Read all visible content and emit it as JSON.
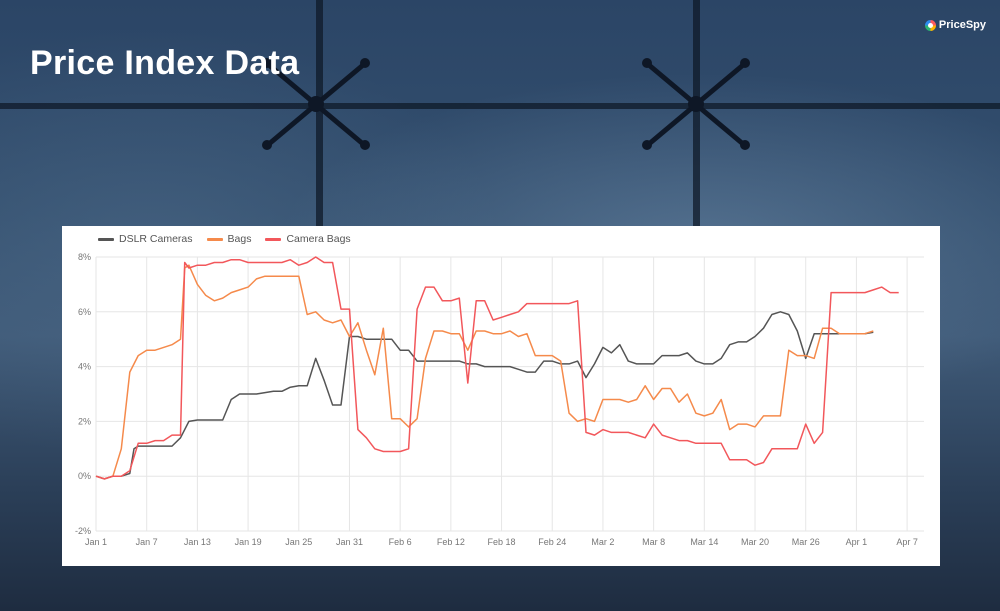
{
  "page": {
    "title": "Price Index Data",
    "brand": "PriceSpy"
  },
  "colors": {
    "dslr": "#555555",
    "bags": "#f58a4b",
    "camera_bags": "#f2575b",
    "grid": "#e6e6e6"
  },
  "chart_data": {
    "type": "line",
    "title": "",
    "xlabel": "",
    "ylabel": "",
    "ylim": [
      -2,
      8
    ],
    "yticks": [
      -2,
      0,
      2,
      4,
      6,
      8
    ],
    "ytick_labels": [
      "-2%",
      "0%",
      "2%",
      "4%",
      "6%",
      "8%"
    ],
    "x_start": "Jan 1",
    "x_range": [
      0,
      98
    ],
    "xticks": [
      0,
      6,
      12,
      18,
      24,
      30,
      36,
      42,
      48,
      54,
      60,
      66,
      72,
      78,
      84,
      90,
      96
    ],
    "xtick_labels": [
      "Jan 1",
      "Jan 7",
      "Jan 13",
      "Jan 19",
      "Jan 25",
      "Jan 31",
      "Feb 6",
      "Feb 12",
      "Feb 18",
      "Feb 24",
      "Mar 2",
      "Mar 8",
      "Mar 14",
      "Mar 20",
      "Mar 26",
      "Apr 1",
      "Apr 7"
    ],
    "legend_position": "top-left",
    "grid": true,
    "series": [
      {
        "name": "DSLR Cameras",
        "color_key": "dslr",
        "points": [
          [
            0,
            0
          ],
          [
            1,
            -0.1
          ],
          [
            2,
            0
          ],
          [
            3,
            0
          ],
          [
            4,
            0.1
          ],
          [
            4.5,
            1.0
          ],
          [
            5,
            1.1
          ],
          [
            6,
            1.1
          ],
          [
            7,
            1.1
          ],
          [
            8,
            1.1
          ],
          [
            9,
            1.1
          ],
          [
            10,
            1.4
          ],
          [
            11,
            2.0
          ],
          [
            12,
            2.05
          ],
          [
            13,
            2.05
          ],
          [
            14,
            2.05
          ],
          [
            15,
            2.05
          ],
          [
            16,
            2.8
          ],
          [
            17,
            3.0
          ],
          [
            18,
            3.0
          ],
          [
            19,
            3.0
          ],
          [
            20,
            3.05
          ],
          [
            21,
            3.1
          ],
          [
            22,
            3.1
          ],
          [
            23,
            3.25
          ],
          [
            24,
            3.3
          ],
          [
            25,
            3.3
          ],
          [
            26,
            4.3
          ],
          [
            27,
            3.5
          ],
          [
            28,
            2.6
          ],
          [
            29,
            2.6
          ],
          [
            30,
            5.1
          ],
          [
            31,
            5.1
          ],
          [
            32,
            5.0
          ],
          [
            33,
            5.0
          ],
          [
            34,
            5.0
          ],
          [
            35,
            5.0
          ],
          [
            36,
            4.6
          ],
          [
            37,
            4.6
          ],
          [
            38,
            4.2
          ],
          [
            39,
            4.2
          ],
          [
            40,
            4.2
          ],
          [
            41,
            4.2
          ],
          [
            42,
            4.2
          ],
          [
            43,
            4.2
          ],
          [
            44,
            4.1
          ],
          [
            45,
            4.1
          ],
          [
            46,
            4.0
          ],
          [
            47,
            4.0
          ],
          [
            48,
            4.0
          ],
          [
            49,
            4.0
          ],
          [
            50,
            3.9
          ],
          [
            51,
            3.8
          ],
          [
            52,
            3.8
          ],
          [
            53,
            4.2
          ],
          [
            54,
            4.2
          ],
          [
            55,
            4.1
          ],
          [
            56,
            4.1
          ],
          [
            57,
            4.2
          ],
          [
            58,
            3.6
          ],
          [
            59,
            4.1
          ],
          [
            60,
            4.7
          ],
          [
            61,
            4.5
          ],
          [
            62,
            4.8
          ],
          [
            63,
            4.2
          ],
          [
            64,
            4.1
          ],
          [
            65,
            4.1
          ],
          [
            66,
            4.1
          ],
          [
            67,
            4.4
          ],
          [
            68,
            4.4
          ],
          [
            69,
            4.4
          ],
          [
            70,
            4.5
          ],
          [
            71,
            4.2
          ],
          [
            72,
            4.1
          ],
          [
            73,
            4.1
          ],
          [
            74,
            4.3
          ],
          [
            75,
            4.8
          ],
          [
            76,
            4.9
          ],
          [
            77,
            4.9
          ],
          [
            78,
            5.1
          ],
          [
            79,
            5.4
          ],
          [
            80,
            5.9
          ],
          [
            81,
            6.0
          ],
          [
            82,
            5.9
          ],
          [
            83,
            5.3
          ],
          [
            84,
            4.3
          ],
          [
            85,
            5.2
          ],
          [
            86,
            5.2
          ],
          [
            87,
            5.2
          ],
          [
            88,
            5.2
          ],
          [
            89,
            5.2
          ],
          [
            90,
            5.2
          ],
          [
            91,
            5.2
          ],
          [
            92,
            5.25
          ]
        ]
      },
      {
        "name": "Bags",
        "color_key": "bags",
        "points": [
          [
            0,
            0
          ],
          [
            1,
            -0.1
          ],
          [
            2,
            0
          ],
          [
            3,
            1.0
          ],
          [
            4,
            3.8
          ],
          [
            5,
            4.4
          ],
          [
            6,
            4.6
          ],
          [
            7,
            4.6
          ],
          [
            8,
            4.7
          ],
          [
            9,
            4.8
          ],
          [
            10,
            5.0
          ],
          [
            10.5,
            7.6
          ],
          [
            11,
            7.7
          ],
          [
            12,
            7.0
          ],
          [
            13,
            6.6
          ],
          [
            14,
            6.4
          ],
          [
            15,
            6.5
          ],
          [
            16,
            6.7
          ],
          [
            17,
            6.8
          ],
          [
            18,
            6.9
          ],
          [
            19,
            7.2
          ],
          [
            20,
            7.3
          ],
          [
            21,
            7.3
          ],
          [
            22,
            7.3
          ],
          [
            23,
            7.3
          ],
          [
            24,
            7.3
          ],
          [
            25,
            5.9
          ],
          [
            26,
            6.0
          ],
          [
            27,
            5.7
          ],
          [
            28,
            5.6
          ],
          [
            29,
            5.7
          ],
          [
            30,
            5.1
          ],
          [
            31,
            5.6
          ],
          [
            32,
            4.6
          ],
          [
            33,
            3.7
          ],
          [
            34,
            5.4
          ],
          [
            35,
            2.1
          ],
          [
            36,
            2.1
          ],
          [
            37,
            1.8
          ],
          [
            38,
            2.1
          ],
          [
            39,
            4.3
          ],
          [
            40,
            5.3
          ],
          [
            41,
            5.3
          ],
          [
            42,
            5.2
          ],
          [
            43,
            5.2
          ],
          [
            44,
            4.6
          ],
          [
            45,
            5.3
          ],
          [
            46,
            5.3
          ],
          [
            47,
            5.2
          ],
          [
            48,
            5.2
          ],
          [
            49,
            5.3
          ],
          [
            50,
            5.1
          ],
          [
            51,
            5.2
          ],
          [
            52,
            4.4
          ],
          [
            53,
            4.4
          ],
          [
            54,
            4.4
          ],
          [
            55,
            4.2
          ],
          [
            56,
            2.3
          ],
          [
            57,
            2.0
          ],
          [
            58,
            2.1
          ],
          [
            59,
            2.0
          ],
          [
            60,
            2.8
          ],
          [
            61,
            2.8
          ],
          [
            62,
            2.8
          ],
          [
            63,
            2.7
          ],
          [
            64,
            2.8
          ],
          [
            65,
            3.3
          ],
          [
            66,
            2.8
          ],
          [
            67,
            3.2
          ],
          [
            68,
            3.2
          ],
          [
            69,
            2.7
          ],
          [
            70,
            3.0
          ],
          [
            71,
            2.3
          ],
          [
            72,
            2.2
          ],
          [
            73,
            2.3
          ],
          [
            74,
            2.8
          ],
          [
            75,
            1.7
          ],
          [
            76,
            1.9
          ],
          [
            77,
            1.9
          ],
          [
            78,
            1.8
          ],
          [
            79,
            2.2
          ],
          [
            80,
            2.2
          ],
          [
            81,
            2.2
          ],
          [
            82,
            4.6
          ],
          [
            83,
            4.4
          ],
          [
            84,
            4.4
          ],
          [
            85,
            4.3
          ],
          [
            86,
            5.4
          ],
          [
            87,
            5.4
          ],
          [
            88,
            5.2
          ],
          [
            89,
            5.2
          ],
          [
            90,
            5.2
          ],
          [
            91,
            5.2
          ],
          [
            92,
            5.3
          ]
        ]
      },
      {
        "name": "Camera Bags",
        "color_key": "camera_bags",
        "points": [
          [
            0,
            0
          ],
          [
            1,
            -0.1
          ],
          [
            2,
            0
          ],
          [
            3,
            0
          ],
          [
            4,
            0.2
          ],
          [
            5,
            1.2
          ],
          [
            6,
            1.2
          ],
          [
            7,
            1.3
          ],
          [
            8,
            1.3
          ],
          [
            9,
            1.5
          ],
          [
            10,
            1.5
          ],
          [
            10.5,
            7.8
          ],
          [
            11,
            7.6
          ],
          [
            12,
            7.7
          ],
          [
            13,
            7.7
          ],
          [
            14,
            7.8
          ],
          [
            15,
            7.8
          ],
          [
            16,
            7.9
          ],
          [
            17,
            7.9
          ],
          [
            18,
            7.8
          ],
          [
            19,
            7.8
          ],
          [
            20,
            7.8
          ],
          [
            21,
            7.8
          ],
          [
            22,
            7.8
          ],
          [
            23,
            7.9
          ],
          [
            24,
            7.7
          ],
          [
            25,
            7.8
          ],
          [
            26,
            8.0
          ],
          [
            27,
            7.8
          ],
          [
            28,
            7.8
          ],
          [
            29,
            6.1
          ],
          [
            30,
            6.1
          ],
          [
            31,
            1.7
          ],
          [
            32,
            1.4
          ],
          [
            33,
            1.0
          ],
          [
            34,
            0.9
          ],
          [
            35,
            0.9
          ],
          [
            36,
            0.9
          ],
          [
            37,
            1.0
          ],
          [
            38,
            6.1
          ],
          [
            39,
            6.9
          ],
          [
            40,
            6.9
          ],
          [
            41,
            6.4
          ],
          [
            42,
            6.4
          ],
          [
            43,
            6.5
          ],
          [
            44,
            3.4
          ],
          [
            45,
            6.4
          ],
          [
            46,
            6.4
          ],
          [
            47,
            5.7
          ],
          [
            48,
            5.8
          ],
          [
            49,
            5.9
          ],
          [
            50,
            6.0
          ],
          [
            51,
            6.3
          ],
          [
            52,
            6.3
          ],
          [
            53,
            6.3
          ],
          [
            54,
            6.3
          ],
          [
            55,
            6.3
          ],
          [
            56,
            6.3
          ],
          [
            57,
            6.4
          ],
          [
            58,
            1.6
          ],
          [
            59,
            1.5
          ],
          [
            60,
            1.7
          ],
          [
            61,
            1.6
          ],
          [
            62,
            1.6
          ],
          [
            63,
            1.6
          ],
          [
            64,
            1.5
          ],
          [
            65,
            1.4
          ],
          [
            66,
            1.9
          ],
          [
            67,
            1.5
          ],
          [
            68,
            1.4
          ],
          [
            69,
            1.3
          ],
          [
            70,
            1.3
          ],
          [
            71,
            1.2
          ],
          [
            72,
            1.2
          ],
          [
            73,
            1.2
          ],
          [
            74,
            1.2
          ],
          [
            75,
            0.6
          ],
          [
            76,
            0.6
          ],
          [
            77,
            0.6
          ],
          [
            78,
            0.4
          ],
          [
            79,
            0.5
          ],
          [
            80,
            1.0
          ],
          [
            81,
            1.0
          ],
          [
            82,
            1.0
          ],
          [
            83,
            1.0
          ],
          [
            84,
            1.9
          ],
          [
            85,
            1.2
          ],
          [
            86,
            1.6
          ],
          [
            87,
            6.7
          ],
          [
            88,
            6.7
          ],
          [
            89,
            6.7
          ],
          [
            90,
            6.7
          ],
          [
            91,
            6.7
          ],
          [
            92,
            6.8
          ],
          [
            93,
            6.9
          ],
          [
            94,
            6.7
          ],
          [
            95,
            6.7
          ]
        ]
      }
    ]
  }
}
